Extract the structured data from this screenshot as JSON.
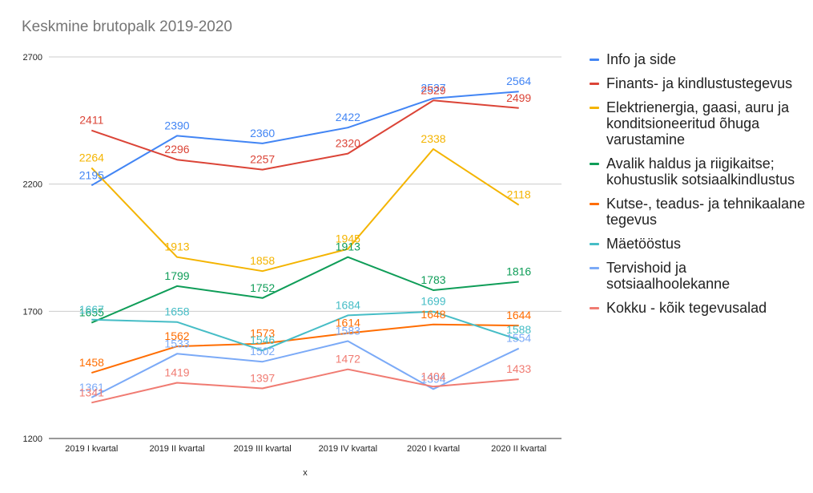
{
  "chart_data": {
    "type": "line",
    "title": "Keskmine brutopalk 2019-2020",
    "xlabel": "x",
    "ylabel": "",
    "ylim": [
      1200,
      2700
    ],
    "yticks": [
      1200,
      1700,
      2200,
      2700
    ],
    "grid": true,
    "legend_position": "right",
    "categories": [
      "2019 I kvartal",
      "2019 II kvartal",
      "2019 III kvartal",
      "2019 IV kvartal",
      "2020 I kvartal",
      "2020 II kvartal"
    ],
    "series": [
      {
        "name": "Info ja side",
        "color": "#4285f4",
        "values": [
          2195,
          2390,
          2360,
          2422,
          2537,
          2564
        ]
      },
      {
        "name": "Finants- ja kindlustustegevus",
        "color": "#db4437",
        "values": [
          2411,
          2296,
          2257,
          2320,
          2529,
          2499
        ]
      },
      {
        "name": "Elektrienergia, gaasi, auru ja konditsioneeritud õhuga varustamine",
        "color": "#f4b400",
        "values": [
          2264,
          1913,
          1858,
          1945,
          2338,
          2118
        ]
      },
      {
        "name": "Avalik haldus ja riigikaitse; kohustuslik sotsiaalkindlustus",
        "color": "#0f9d58",
        "values": [
          1655,
          1799,
          1752,
          1913,
          1783,
          1816
        ]
      },
      {
        "name": "Kutse-, teadus- ja tehnikaalane tegevus",
        "color": "#ff6d01",
        "values": [
          1458,
          1562,
          1573,
          1614,
          1648,
          1644
        ]
      },
      {
        "name": "Mäetööstus",
        "color": "#46bdc6",
        "values": [
          1667,
          1658,
          1546,
          1684,
          1699,
          1588
        ]
      },
      {
        "name": "Tervishoid ja sotsiaalhoolekanne",
        "color": "#7baaf7",
        "values": [
          1361,
          1533,
          1502,
          1583,
          1394,
          1554
        ]
      },
      {
        "name": "Kokku - kõik tegevusalad",
        "color": "#f07b72",
        "values": [
          1341,
          1419,
          1397,
          1472,
          1404,
          1433
        ]
      }
    ]
  }
}
